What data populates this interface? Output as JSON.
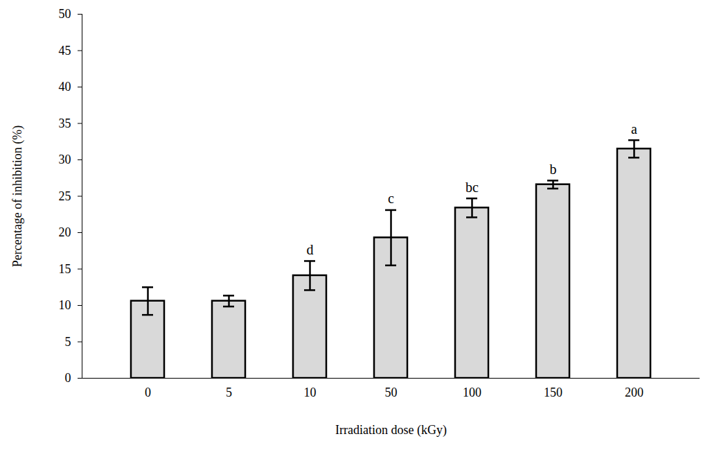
{
  "chart_data": {
    "type": "bar",
    "x_label": "Irradiation dose (kGy)",
    "y_label": "Percentage of inhibition (%)",
    "categories": [
      "0",
      "5",
      "10",
      "50",
      "100",
      "150",
      "200"
    ],
    "values": [
      10.6,
      10.6,
      14.1,
      19.3,
      23.4,
      26.6,
      31.5
    ],
    "errors": [
      1.9,
      0.75,
      2.0,
      3.8,
      1.3,
      0.55,
      1.2
    ],
    "annotations": [
      null,
      null,
      "d",
      "c",
      "bc",
      "b",
      "a"
    ],
    "color": "#d9d9d9",
    "ylim": [
      0,
      50
    ],
    "yticks": [
      0,
      5,
      10,
      15,
      20,
      25,
      30,
      35,
      40,
      45,
      50
    ],
    "grid": false
  }
}
